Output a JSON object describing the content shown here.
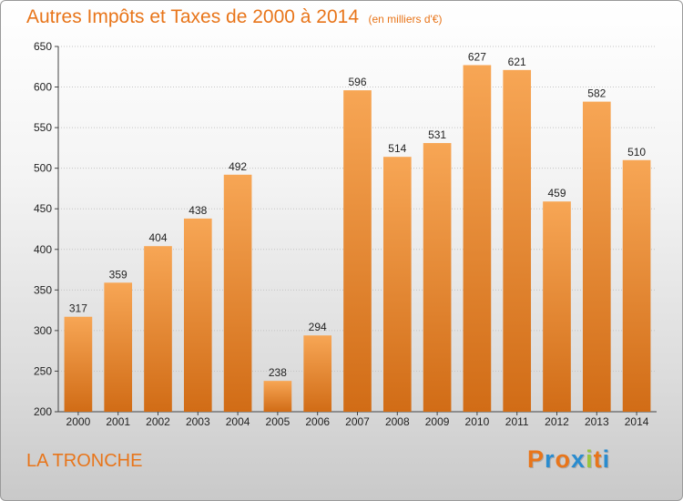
{
  "header": {
    "title": "Autres Impôts et Taxes de 2000 à 2014",
    "subtitle": "(en milliers d'€)"
  },
  "footer": {
    "commune": "LA TRONCHE",
    "logo_text": "Proxiti"
  },
  "colors": {
    "accent": "#e8751a",
    "bar_light": "#f7a655",
    "bar_dark": "#d16c16",
    "logo_letters": [
      "#e8751a",
      "#2a8ccf",
      "#e8751a",
      "#2a8ccf",
      "#9bc53d",
      "#e8751a",
      "#2a8ccf"
    ]
  },
  "chart_data": {
    "type": "bar",
    "title": "Autres Impôts et Taxes de 2000 à 2014",
    "subtitle": "(en milliers d'€)",
    "categories": [
      "2000",
      "2001",
      "2002",
      "2003",
      "2004",
      "2005",
      "2006",
      "2007",
      "2008",
      "2009",
      "2010",
      "2011",
      "2012",
      "2013",
      "2014"
    ],
    "values": [
      317,
      359,
      404,
      438,
      492,
      238,
      294,
      596,
      514,
      531,
      627,
      621,
      459,
      582,
      510
    ],
    "data_labels": [
      "317",
      "359",
      "404",
      "438",
      "492",
      "238",
      "294",
      "596",
      "514",
      "531",
      "627",
      "621",
      "459",
      "582",
      "510"
    ],
    "ylim": [
      200,
      650
    ],
    "yticks": [
      200,
      250,
      300,
      350,
      400,
      450,
      500,
      550,
      600,
      650
    ],
    "grid": true,
    "legend": "none",
    "xlabel": "",
    "ylabel": ""
  }
}
